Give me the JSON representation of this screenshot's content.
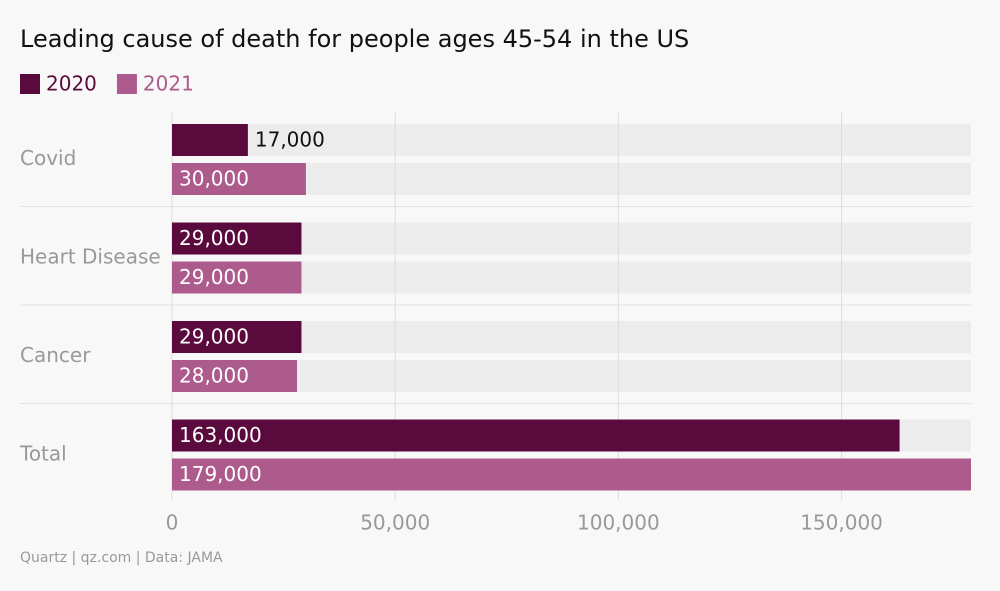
{
  "chart_data": {
    "type": "bar",
    "orientation": "horizontal",
    "title": "Leading cause of death for people ages 45-54 in the US",
    "categories": [
      "Covid",
      "Heart Disease",
      "Cancer",
      "Total"
    ],
    "series": [
      {
        "name": "2020",
        "color": "#5b0a3d",
        "values": [
          17000,
          29000,
          29000,
          163000
        ],
        "value_labels": [
          "17,000",
          "29,000",
          "29,000",
          "163,000"
        ]
      },
      {
        "name": "2021",
        "color": "#ad5a8c",
        "values": [
          30000,
          29000,
          28000,
          179000
        ],
        "value_labels": [
          "30,000",
          "29,000",
          "28,000",
          "179,000"
        ]
      }
    ],
    "xlim": [
      0,
      179000
    ],
    "xticks": [
      0,
      {
        "value": 50000,
        "label": "50,000"
      },
      {
        "value": 100000,
        "label": "100,000"
      },
      {
        "value": 150000,
        "label": "150,000"
      }
    ],
    "grid": true,
    "source": "Quartz | qz.com | Data: JAMA"
  }
}
